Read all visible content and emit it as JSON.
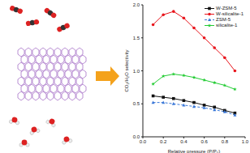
{
  "chart_data": {
    "type": "line",
    "x_label": "Relative pressure (P/P₀)",
    "y_label": "CO₂/H₂O selectivity",
    "x": [
      0.1,
      0.2,
      0.3,
      0.4,
      0.5,
      0.6,
      0.7,
      0.8,
      0.9
    ],
    "series": [
      {
        "name": "W-ZSM-5",
        "color": "#111111",
        "marker": "square",
        "line_style": "solid",
        "values": [
          0.62,
          0.6,
          0.58,
          0.55,
          0.52,
          0.48,
          0.45,
          0.4,
          0.36
        ]
      },
      {
        "name": "W-silicalite-1",
        "color": "#e8141b",
        "marker": "circle",
        "line_style": "solid",
        "values": [
          1.7,
          1.85,
          1.9,
          1.8,
          1.65,
          1.5,
          1.35,
          1.2,
          1.0
        ]
      },
      {
        "name": "ZSM-5",
        "color": "#3a78d8",
        "marker": "triangle",
        "line_style": "dashed",
        "values": [
          0.52,
          0.52,
          0.5,
          0.48,
          0.46,
          0.44,
          0.41,
          0.38,
          0.33
        ]
      },
      {
        "name": "silicalite-1",
        "color": "#22cc33",
        "marker": "star",
        "line_style": "solid",
        "values": [
          0.8,
          0.92,
          0.95,
          0.93,
          0.9,
          0.86,
          0.82,
          0.78,
          0.72
        ]
      }
    ],
    "xlim": [
      0,
      1
    ],
    "xticks": [
      {
        "value": 0,
        "label": "0.0"
      },
      0.2,
      0.4,
      0.6,
      0.8,
      {
        "value": 1,
        "label": "1.0"
      }
    ],
    "ylim": [
      0,
      2
    ],
    "yticks": [
      {
        "value": 0,
        "label": "0.0"
      },
      0.5,
      {
        "value": 1,
        "label": "1.0"
      },
      1.5,
      {
        "value": 2,
        "label": "2.0"
      }
    ],
    "legend": "upper right",
    "grid": false
  }
}
